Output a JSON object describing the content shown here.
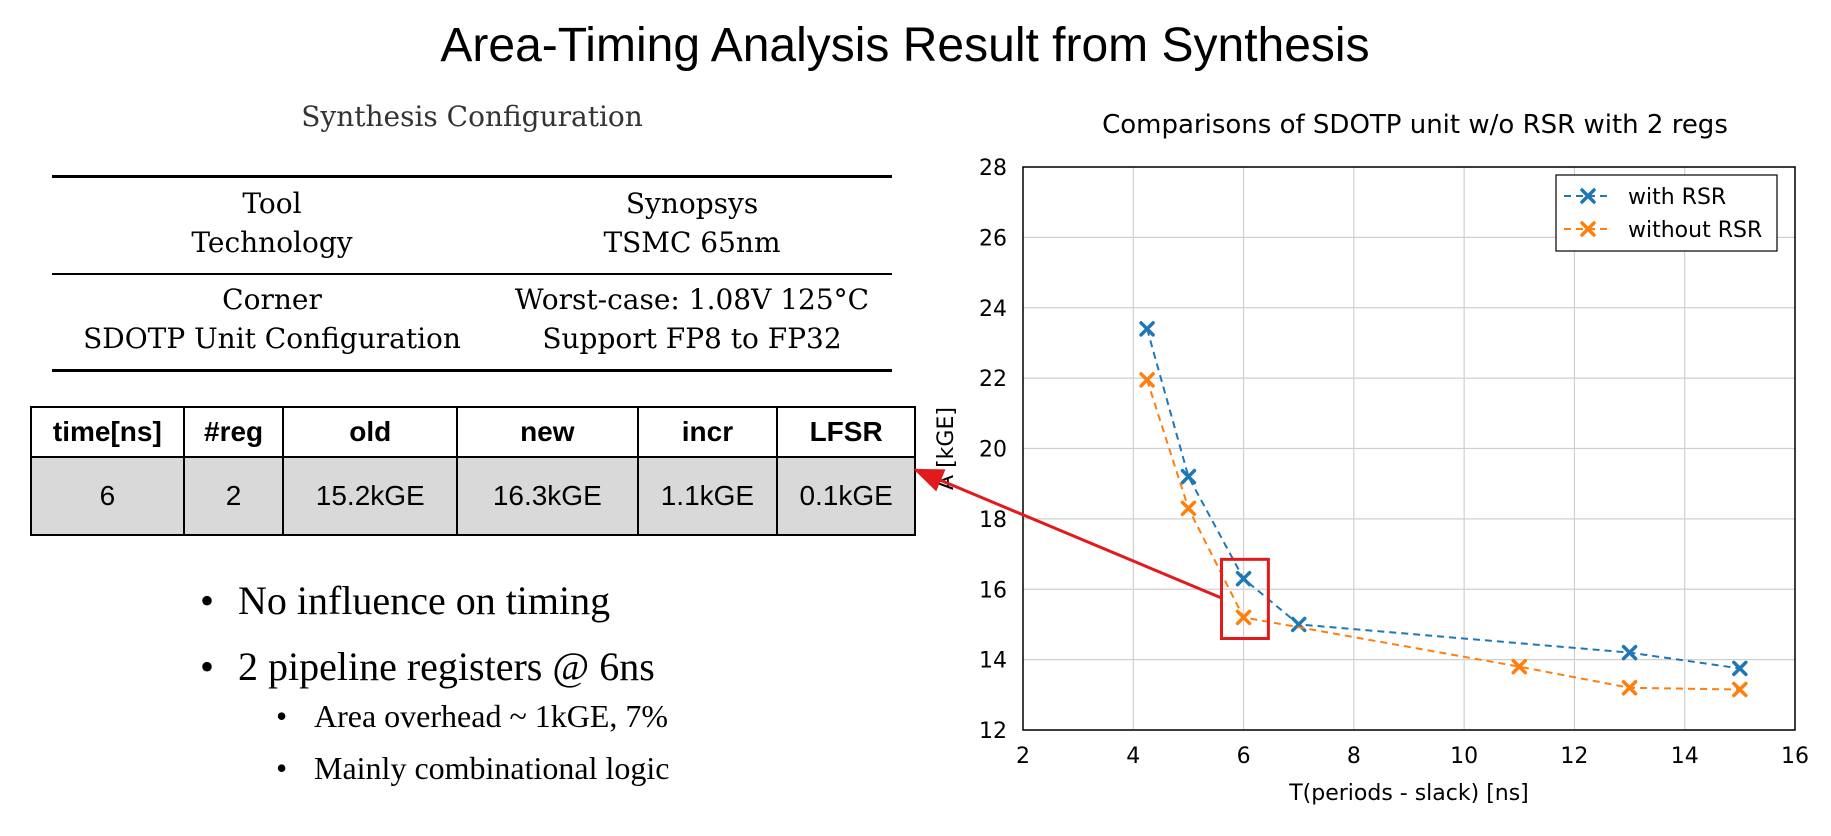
{
  "slide": {
    "title": "Area-Timing Analysis Result from Synthesis"
  },
  "config": {
    "caption": "Synthesis Configuration",
    "rows": [
      {
        "left": [
          "Tool",
          "Technology"
        ],
        "right": [
          "Synopsys",
          "TSMC 65nm"
        ]
      },
      {
        "left": [
          "Corner",
          "SDOTP Unit Configuration"
        ],
        "right": [
          "Worst-case: 1.08V 125°C",
          "Support FP8 to FP32"
        ]
      }
    ]
  },
  "results": {
    "headers": [
      "time[ns]",
      "#reg",
      "old",
      "new",
      "incr",
      "LFSR"
    ],
    "row": [
      "6",
      "2",
      "15.2kGE",
      "16.3kGE",
      "1.1kGE",
      "0.1kGE"
    ]
  },
  "bullets": {
    "items": [
      "No influence on timing",
      "2 pipeline registers @ 6ns"
    ],
    "sub_items": [
      "Area overhead ~ 1kGE, 7%",
      "Mainly combinational logic"
    ]
  },
  "chart_data": {
    "type": "line",
    "title": "Comparisons of SDOTP unit w/o RSR with 2 regs",
    "xlabel": "T(periods - slack) [ns]",
    "ylabel": "A [kGE]",
    "xlim": [
      2,
      16
    ],
    "ylim": [
      12,
      28
    ],
    "xticks": [
      2,
      4,
      6,
      8,
      10,
      12,
      14,
      16
    ],
    "yticks": [
      12,
      14,
      16,
      18,
      20,
      22,
      24,
      26,
      28
    ],
    "grid": true,
    "legend_position": "top-right",
    "series": [
      {
        "name": "with RSR",
        "color": "#1f77b4",
        "marker": "x",
        "line": "dashed",
        "x": [
          4.25,
          5,
          6,
          7,
          13,
          15
        ],
        "y": [
          23.4,
          19.2,
          16.3,
          15.0,
          14.2,
          13.75
        ]
      },
      {
        "name": "without RSR",
        "color": "#ff7f0e",
        "marker": "x",
        "line": "dashed",
        "x": [
          4.25,
          5,
          6,
          11,
          13,
          15
        ],
        "y": [
          21.95,
          18.3,
          15.2,
          13.8,
          13.2,
          13.15
        ]
      }
    ],
    "highlight": {
      "x_range": [
        5.6,
        6.45
      ],
      "y_range": [
        14.6,
        16.85
      ],
      "color": "#e31a1c",
      "arrow_target": "results-table"
    }
  }
}
